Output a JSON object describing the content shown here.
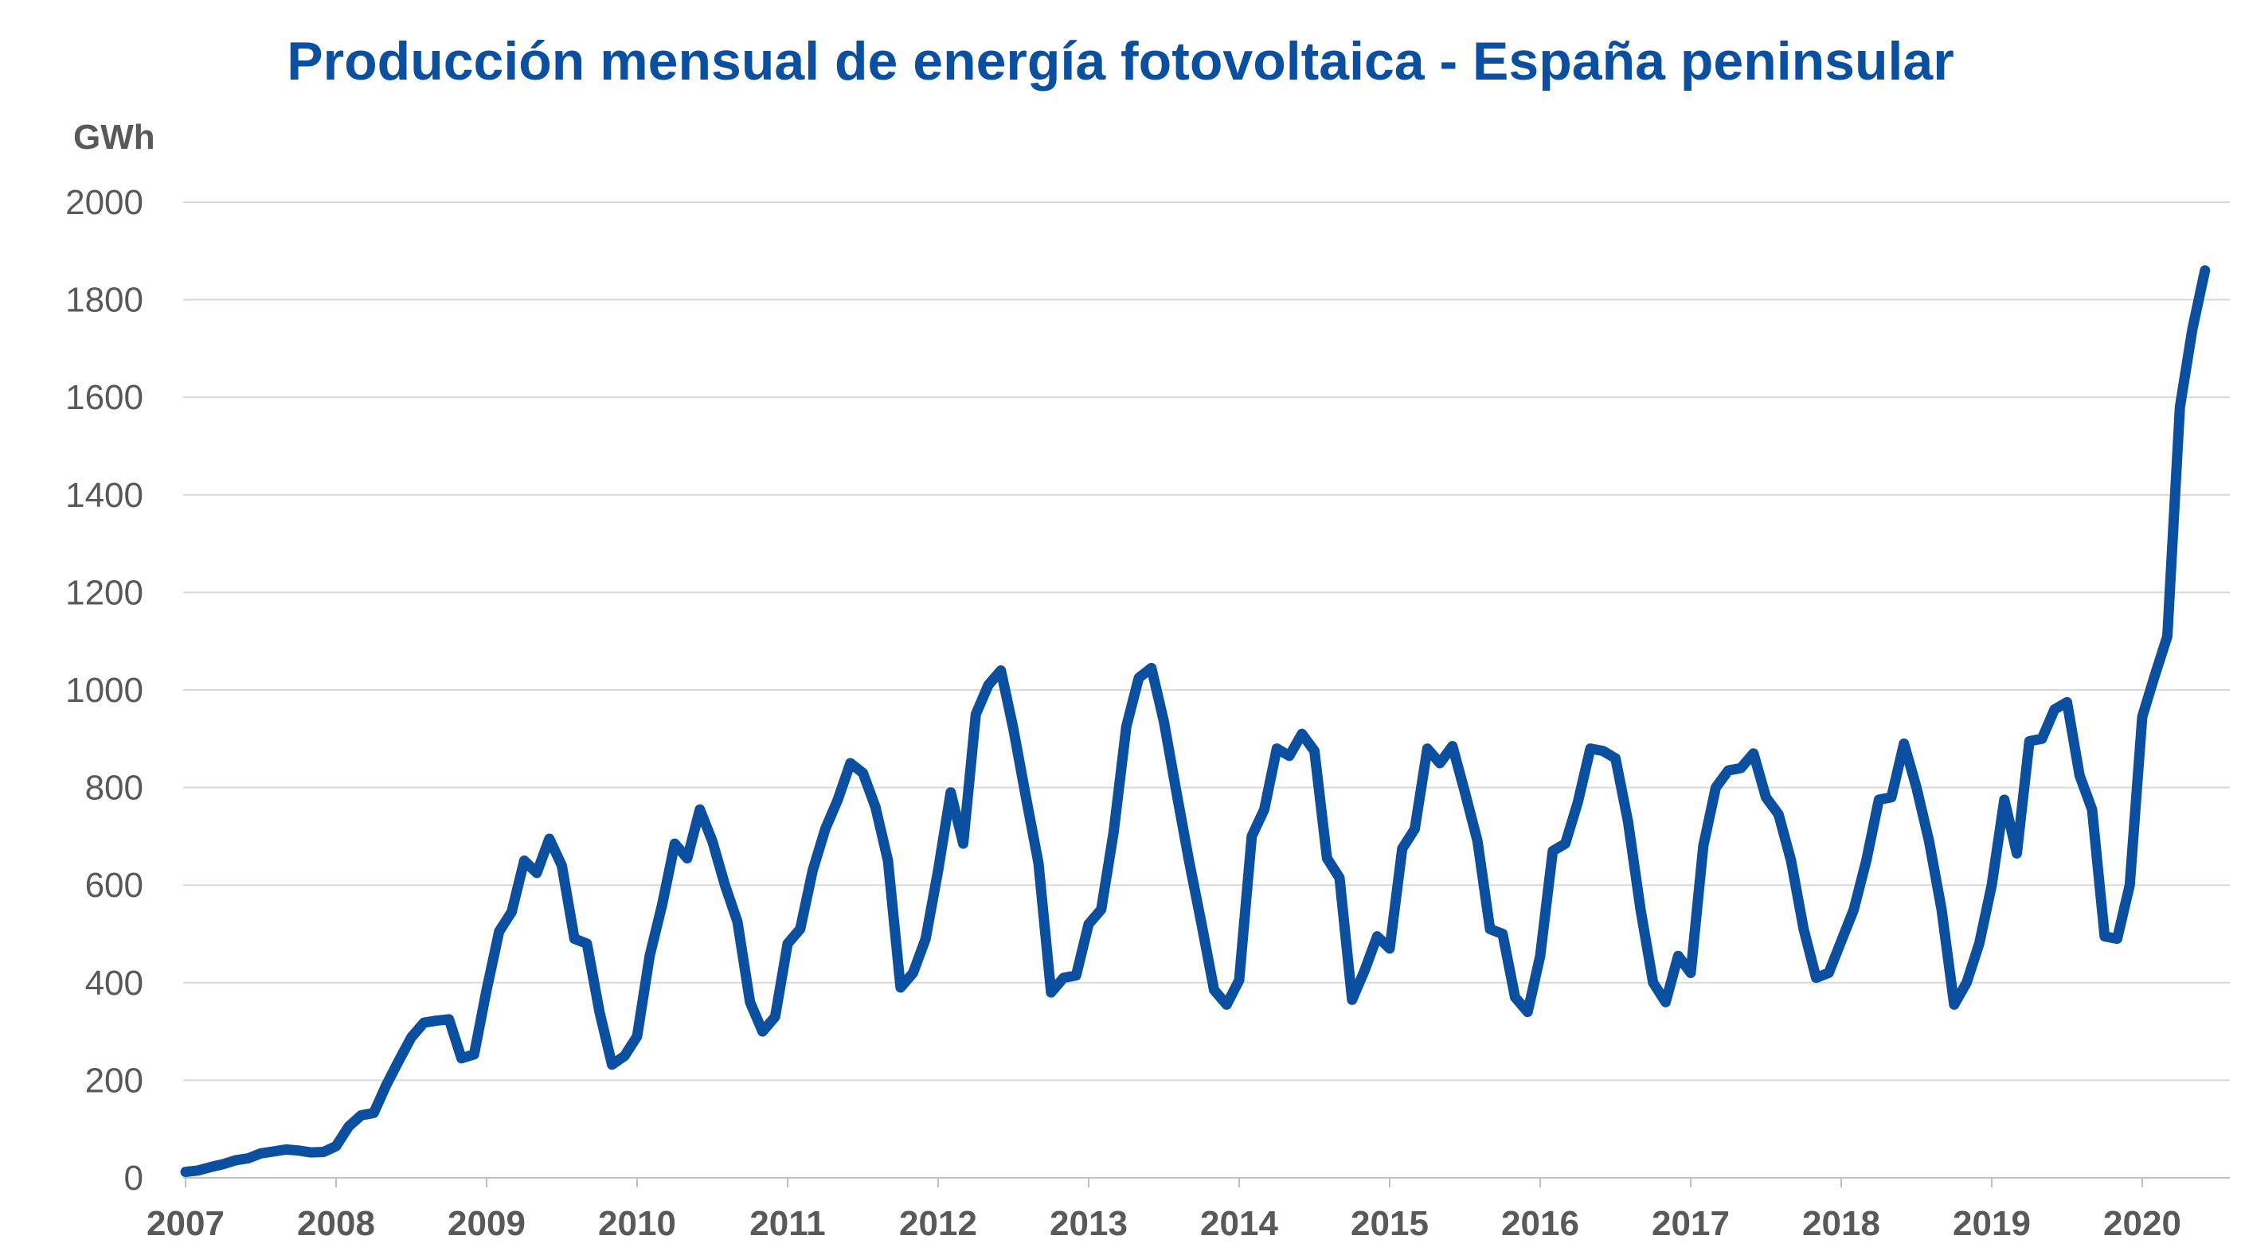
{
  "chart_data": {
    "type": "line",
    "title": "Producción mensual de energía fotovoltaica - España peninsular",
    "unit_label": "GWh",
    "xlabel": "",
    "ylabel": "",
    "ylim": [
      0,
      2000
    ],
    "yticks": [
      "0",
      "200",
      "400",
      "600",
      "800",
      "1000",
      "1200",
      "1400",
      "1600",
      "1800",
      "2000"
    ],
    "xticks": [
      "2007",
      "2008",
      "2009",
      "2010",
      "2011",
      "2012",
      "2013",
      "2014",
      "2015",
      "2016",
      "2017",
      "2018",
      "2019",
      "2020"
    ],
    "x_start": "2007-01",
    "x_frequency": "monthly",
    "grid": "horizontal",
    "line_color": "#0B4FA0",
    "values": [
      12,
      15,
      22,
      28,
      36,
      40,
      50,
      54,
      58,
      56,
      52,
      53,
      65,
      105,
      128,
      133,
      190,
      240,
      288,
      318,
      322,
      325,
      245,
      253,
      385,
      505,
      545,
      650,
      625,
      695,
      640,
      490,
      480,
      340,
      232,
      250,
      290,
      455,
      560,
      685,
      655,
      755,
      690,
      600,
      525,
      360,
      300,
      330,
      480,
      510,
      630,
      715,
      775,
      850,
      830,
      760,
      650,
      390,
      420,
      490,
      630,
      790,
      685,
      950,
      1010,
      1040,
      920,
      780,
      645,
      380,
      410,
      415,
      520,
      550,
      710,
      925,
      1025,
      1045,
      935,
      790,
      650,
      520,
      385,
      355,
      405,
      700,
      755,
      880,
      865,
      910,
      875,
      655,
      615,
      365,
      425,
      495,
      470,
      675,
      715,
      880,
      850,
      885,
      790,
      690,
      510,
      500,
      370,
      340,
      455,
      670,
      685,
      770,
      880,
      875,
      860,
      730,
      550,
      400,
      360,
      455,
      420,
      680,
      800,
      835,
      840,
      870,
      780,
      745,
      650,
      510,
      410,
      420,
      485,
      550,
      650,
      775,
      780,
      890,
      800,
      690,
      550,
      355,
      400,
      480,
      600,
      775,
      665,
      895,
      900,
      960,
      975,
      825,
      755,
      495,
      490,
      600,
      945,
      1030,
      1110,
      1580,
      1740,
      1860
    ]
  }
}
